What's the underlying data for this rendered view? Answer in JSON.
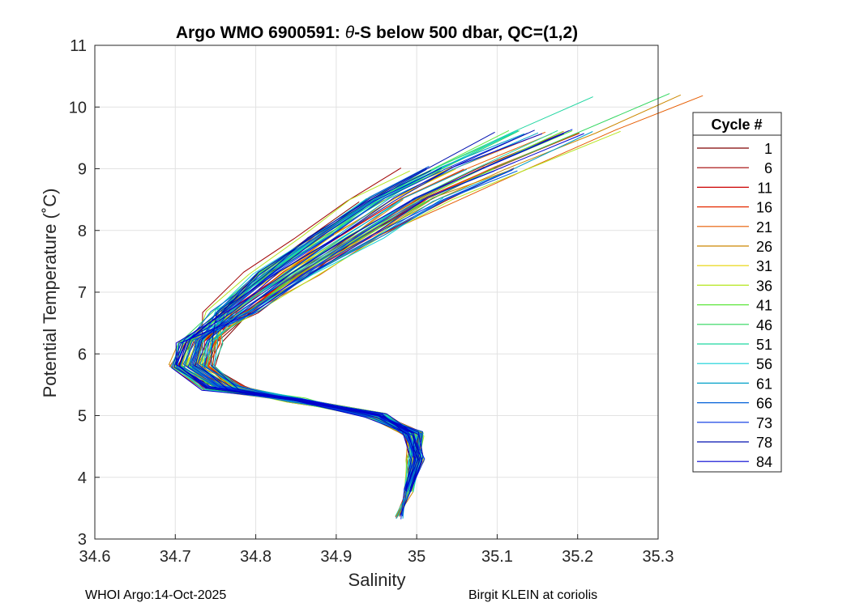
{
  "chart_data": {
    "type": "line",
    "title": "Argo WMO 6900591: θ-S below 500 dbar,  QC=(1,2)",
    "title_prefix": "Argo WMO 6900591: ",
    "title_theta": "θ",
    "title_suffix": "-S below 500 dbar,  QC=(1,2)",
    "xlabel": "Salinity",
    "ylabel": "Potential Temperature (˚C)",
    "xlim": [
      34.6,
      35.3
    ],
    "ylim": [
      3,
      11
    ],
    "xticks": [
      34.6,
      34.7,
      34.8,
      34.9,
      35,
      35.1,
      35.2,
      35.3
    ],
    "xtick_labels": [
      "34.6",
      "34.7",
      "34.8",
      "34.9",
      "35",
      "35.1",
      "35.2",
      "35.3"
    ],
    "yticks": [
      3,
      4,
      5,
      6,
      7,
      8,
      9,
      10,
      11
    ],
    "ytick_labels": [
      "3",
      "4",
      "5",
      "6",
      "7",
      "8",
      "9",
      "10",
      "11"
    ],
    "grid": true,
    "legend": {
      "title": "Cycle #",
      "position": "right",
      "entries": [
        {
          "label": "1",
          "color": "#800000"
        },
        {
          "label": "6",
          "color": "#a00000"
        },
        {
          "label": "11",
          "color": "#cc0000"
        },
        {
          "label": "16",
          "color": "#e62a00"
        },
        {
          "label": "21",
          "color": "#e65c00"
        },
        {
          "label": "26",
          "color": "#cc8800"
        },
        {
          "label": "31",
          "color": "#e6d300"
        },
        {
          "label": "36",
          "color": "#b5e61e"
        },
        {
          "label": "41",
          "color": "#5ee63c"
        },
        {
          "label": "46",
          "color": "#2ed65c"
        },
        {
          "label": "51",
          "color": "#1ed6a0"
        },
        {
          "label": "56",
          "color": "#10d0d8"
        },
        {
          "label": "61",
          "color": "#00a0c8"
        },
        {
          "label": "66",
          "color": "#0060d8"
        },
        {
          "label": "73",
          "color": "#0030e0"
        },
        {
          "label": "78",
          "color": "#0010b0"
        },
        {
          "label": "84",
          "color": "#0000d0"
        }
      ]
    },
    "series_shape": {
      "description": "approximate theta-S envelope of all profiles",
      "points": [
        {
          "s": 34.978,
          "t": 3.35
        },
        {
          "s": 34.99,
          "t": 3.8
        },
        {
          "s": 35.0,
          "t": 4.3
        },
        {
          "s": 34.995,
          "t": 4.7
        },
        {
          "s": 34.95,
          "t": 5.0
        },
        {
          "s": 34.85,
          "t": 5.25
        },
        {
          "s": 34.76,
          "t": 5.45
        },
        {
          "s": 34.72,
          "t": 5.8
        },
        {
          "s": 34.73,
          "t": 6.2
        },
        {
          "s": 34.77,
          "t": 6.7
        },
        {
          "s": 34.83,
          "t": 7.3
        },
        {
          "s": 34.9,
          "t": 7.9
        },
        {
          "s": 34.97,
          "t": 8.5
        },
        {
          "s": 35.05,
          "t": 9.0
        },
        {
          "s": 35.15,
          "t": 9.6
        },
        {
          "s": 35.25,
          "t": 10.2
        }
      ]
    },
    "footer_left": "WHOI Argo:14-Oct-2025",
    "footer_right": "Birgit KLEIN at coriolis"
  }
}
